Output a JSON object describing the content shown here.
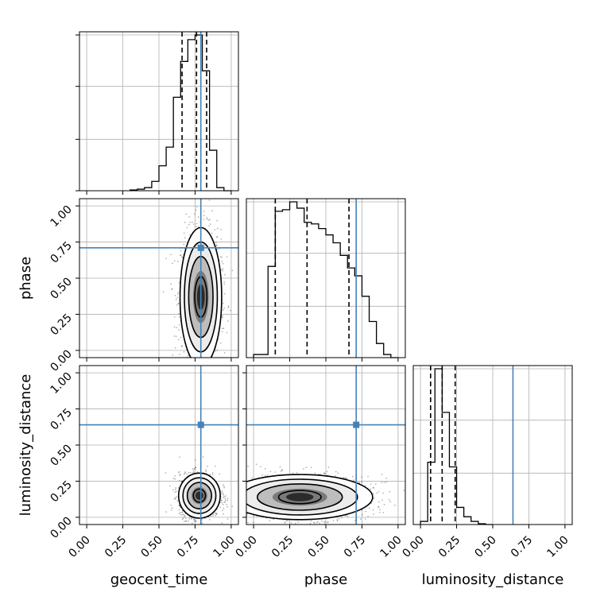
{
  "chart_data": {
    "type": "corner",
    "parameters": [
      "geocent_time",
      "phase",
      "luminosity_distance"
    ],
    "axis_labels": {
      "x": [
        "geocent_time",
        "phase",
        "luminosity_distance"
      ],
      "y": [
        "",
        "phase",
        "luminosity_distance"
      ]
    },
    "range": [
      -0.05,
      1.05
    ],
    "ticks": [
      0.0,
      0.25,
      0.5,
      0.75,
      1.0
    ],
    "tick_labels": [
      "0.00",
      "0.25",
      "0.50",
      "0.75",
      "1.00"
    ],
    "truths": {
      "geocent_time": 0.79,
      "phase": 0.71,
      "luminosity_distance": 0.64
    },
    "truth_color": "#4682b4",
    "grid": true,
    "histograms": {
      "geocent_time": {
        "bin_edges": [
          0.3,
          0.35,
          0.4,
          0.45,
          0.5,
          0.55,
          0.6,
          0.65,
          0.7,
          0.75,
          0.8,
          0.85,
          0.9,
          0.95,
          1.0
        ],
        "counts": [
          0.005,
          0.01,
          0.02,
          0.06,
          0.16,
          0.28,
          0.6,
          0.83,
          0.97,
          1.0,
          0.77,
          0.26,
          0.02,
          0.0
        ],
        "quantiles": [
          0.66,
          0.76,
          0.83
        ]
      },
      "phase": {
        "bin_edges": [
          0.0,
          0.05,
          0.1,
          0.15,
          0.2,
          0.25,
          0.3,
          0.35,
          0.4,
          0.45,
          0.5,
          0.55,
          0.6,
          0.65,
          0.7,
          0.75,
          0.8,
          0.85,
          0.9,
          0.95,
          1.0
        ],
        "counts": [
          0.02,
          0.02,
          0.58,
          0.93,
          0.94,
          0.99,
          0.95,
          0.86,
          0.85,
          0.82,
          0.78,
          0.73,
          0.65,
          0.57,
          0.52,
          0.39,
          0.23,
          0.09,
          0.02,
          0.0
        ],
        "quantiles": [
          0.15,
          0.37,
          0.66
        ]
      },
      "luminosity_distance": {
        "bin_edges": [
          0.0,
          0.05,
          0.1,
          0.15,
          0.2,
          0.25,
          0.3,
          0.35,
          0.4,
          0.45,
          0.5
        ],
        "counts": [
          0.02,
          0.4,
          1.0,
          0.72,
          0.37,
          0.11,
          0.05,
          0.02,
          0.005,
          0.0
        ],
        "quantiles": [
          0.07,
          0.15,
          0.24
        ]
      }
    },
    "densities": {
      "phase_vs_geocent_time": {
        "x_center": 0.79,
        "y_center": 0.37,
        "x_sigma": 0.06,
        "y_sigma": 0.2
      },
      "luminosity_distance_vs_geocent_time": {
        "x_center": 0.78,
        "y_center": 0.15,
        "x_sigma": 0.06,
        "y_sigma": 0.065
      },
      "luminosity_distance_vs_phase": {
        "x_center": 0.32,
        "y_center": 0.14,
        "x_sigma": 0.21,
        "y_sigma": 0.065
      }
    }
  }
}
